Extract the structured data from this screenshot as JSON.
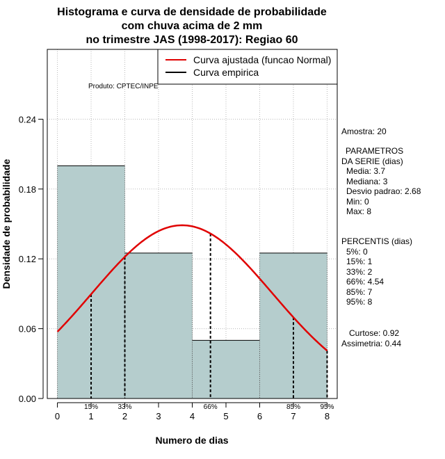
{
  "title": {
    "line1": "Histograma e curva de densidade de probabilidade",
    "line2": "com chuva acima de 2 mm",
    "line3": "no trimestre JAS (1998-2017): Regiao 60"
  },
  "product_label": "Produto: CPTEC/INPE",
  "legend": [
    {
      "label": "Curva ajustada (funcao Normal)",
      "color": "#e00000"
    },
    {
      "label": "Curva empirica",
      "color": "#000000"
    }
  ],
  "stats": {
    "amostra": "Amostra: 20",
    "params_title_1": "PARAMETROS",
    "params_title_2": "DA SERIE (dias)",
    "media": "Media: 3.7",
    "mediana": "Mediana: 3",
    "desvio": "Desvio padrao: 2.68",
    "min": "Min: 0",
    "max": "Max: 8",
    "percentis_title": "PERCENTIS (dias)",
    "p5": "5%: 0",
    "p15": "15%: 1",
    "p33": "33%: 2",
    "p66": "66%: 4.54",
    "p85": "85%: 7",
    "p95": "95%: 8",
    "curtose": "Curtose: 0.92",
    "assimetria": "Assimetria: 0.44"
  },
  "chart_data": {
    "type": "bar",
    "title": "Histograma e curva de densidade de probabilidade com chuva acima de 2 mm no trimestre JAS (1998-2017): Regiao 60",
    "xlabel": "Numero de dias",
    "ylabel": "Densidade de probabilidade",
    "xlim": [
      -0.3,
      8.3
    ],
    "ylim": [
      0,
      0.3
    ],
    "xticks": [
      0,
      1,
      2,
      3,
      4,
      5,
      6,
      7,
      8
    ],
    "xtick_labels": [
      "0",
      "1",
      "2",
      "3",
      "4",
      "5",
      "6",
      "7",
      "8"
    ],
    "yticks": [
      0.0,
      0.06,
      0.12,
      0.18,
      0.24
    ],
    "ytick_labels": [
      "0.00",
      "0.06",
      "0.12",
      "0.18",
      "0.24"
    ],
    "grid": true,
    "bar_color": "#b5cdcd",
    "bins": [
      {
        "start": 0,
        "end": 2,
        "density": 0.2
      },
      {
        "start": 2,
        "end": 4,
        "density": 0.125
      },
      {
        "start": 4,
        "end": 6,
        "density": 0.05
      },
      {
        "start": 6,
        "end": 8,
        "density": 0.125
      }
    ],
    "normal_curve": {
      "name": "Curva ajustada (funcao Normal)",
      "mean": 3.7,
      "sd": 2.68,
      "x_from": 0,
      "x_to": 8,
      "color": "#e00000"
    },
    "percentile_markers": [
      {
        "label": "15%",
        "x": 1
      },
      {
        "label": "33%",
        "x": 2
      },
      {
        "label": "66%",
        "x": 4.54
      },
      {
        "label": "85%",
        "x": 7
      },
      {
        "label": "95%",
        "x": 8
      }
    ]
  }
}
